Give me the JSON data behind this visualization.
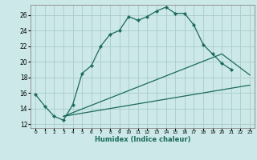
{
  "xlabel": "Humidex (Indice chaleur)",
  "bg_color": "#cce8e8",
  "grid_color": "#aacccc",
  "line_color": "#1a6b5a",
  "xlim": [
    -0.5,
    23.5
  ],
  "ylim": [
    11.5,
    27.3
  ],
  "xticks": [
    0,
    1,
    2,
    3,
    4,
    5,
    6,
    7,
    8,
    9,
    10,
    11,
    12,
    13,
    14,
    15,
    16,
    17,
    18,
    19,
    20,
    21,
    22,
    23
  ],
  "yticks": [
    12,
    14,
    16,
    18,
    20,
    22,
    24,
    26
  ],
  "series1_x": [
    0,
    1,
    2,
    3,
    4,
    5,
    6,
    7,
    8,
    9,
    10,
    11,
    12,
    13,
    14,
    15,
    16,
    17,
    18,
    19,
    20,
    21
  ],
  "series1_y": [
    15.8,
    14.3,
    13.0,
    12.5,
    14.5,
    18.5,
    19.5,
    22.0,
    23.5,
    24.0,
    25.8,
    25.3,
    25.8,
    26.5,
    27.0,
    26.2,
    26.2,
    24.7,
    22.2,
    21.0,
    19.8,
    19.0
  ],
  "series2_x": [
    3,
    23
  ],
  "series2_y": [
    13.0,
    17.0
  ],
  "series3_x": [
    3,
    20,
    23
  ],
  "series3_y": [
    13.0,
    21.0,
    18.3
  ]
}
